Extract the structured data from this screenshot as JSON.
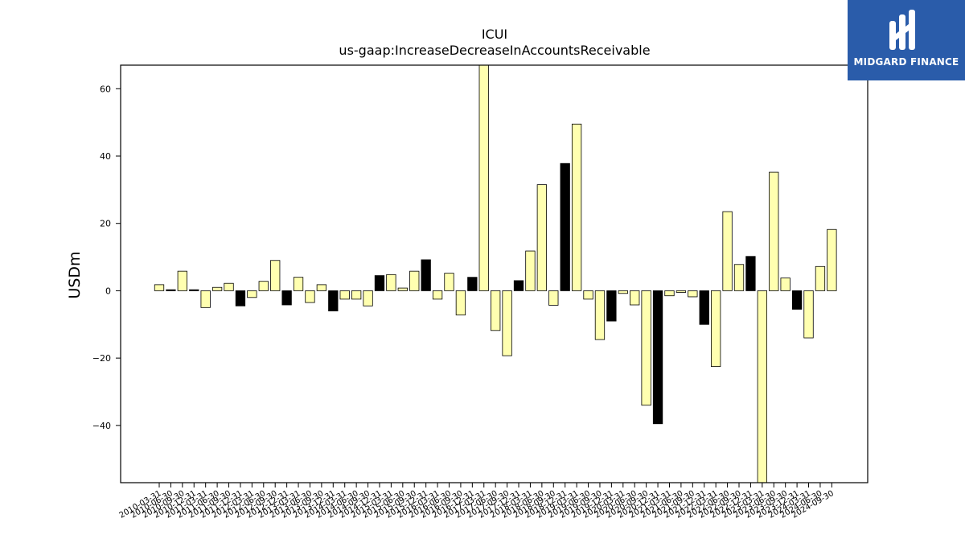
{
  "chart_data": {
    "type": "bar",
    "title": "ICUI",
    "subtitle": "us-gaap:IncreaseDecreaseInAccountsReceivable",
    "ylabel": "USDm",
    "xlabel": "",
    "ylim": [
      -57,
      67
    ],
    "yticks": [
      -40,
      -20,
      0,
      20,
      40,
      60
    ],
    "grid": false,
    "colors": {
      "annual": "#000000",
      "quarter": "#ffffb0",
      "edge": "#000000"
    },
    "categories": [
      "2010-03-31",
      "2010-06-30",
      "2010-09-30",
      "2010-12-31",
      "2011-03-31",
      "2011-06-30",
      "2011-09-30",
      "2011-12-31",
      "2012-03-31",
      "2012-06-30",
      "2012-09-30",
      "2012-12-31",
      "2013-03-31",
      "2013-06-30",
      "2013-09-30",
      "2013-12-31",
      "2014-03-31",
      "2014-06-30",
      "2014-09-30",
      "2014-12-31",
      "2015-03-31",
      "2015-06-30",
      "2015-09-30",
      "2015-12-31",
      "2016-03-31",
      "2016-06-30",
      "2016-09-30",
      "2016-12-31",
      "2017-03-31",
      "2017-06-30",
      "2017-09-30",
      "2017-12-31",
      "2018-03-31",
      "2018-06-30",
      "2018-09-30",
      "2018-12-31",
      "2019-03-31",
      "2019-06-30",
      "2019-09-30",
      "2019-12-31",
      "2020-03-31",
      "2020-06-30",
      "2020-09-30",
      "2020-12-31",
      "2021-03-31",
      "2021-06-30",
      "2021-09-30",
      "2021-12-31",
      "2022-03-31",
      "2022-06-30",
      "2022-09-30",
      "2022-12-31",
      "2023-03-31",
      "2023-06-30",
      "2023-09-30",
      "2023-12-31",
      "2024-03-31",
      "2024-06-30",
      "2024-09-30"
    ],
    "values": [
      1.8,
      0.3,
      5.8,
      0.3,
      -5.0,
      1.0,
      2.2,
      -4.5,
      -2.0,
      2.8,
      9.0,
      -4.2,
      4.0,
      -3.5,
      1.8,
      -6.0,
      -2.5,
      -2.5,
      -4.5,
      4.5,
      4.8,
      0.8,
      5.8,
      9.2,
      -2.5,
      5.2,
      -7.2,
      4.0,
      67.5,
      -11.8,
      -19.3,
      3.0,
      11.8,
      31.5,
      -4.3,
      37.8,
      49.5,
      -2.5,
      -14.5,
      -9.0,
      -0.8,
      -4.2,
      -34.0,
      -39.5,
      -1.5,
      -0.5,
      -1.8,
      -10.0,
      -22.5,
      23.5,
      7.8,
      10.2,
      -57.0,
      35.2,
      3.8,
      -5.5,
      -14.0,
      7.2,
      18.2
    ],
    "annual": [
      false,
      true,
      false,
      true,
      false,
      false,
      false,
      true,
      false,
      false,
      false,
      true,
      false,
      false,
      false,
      true,
      false,
      false,
      false,
      true,
      false,
      false,
      false,
      true,
      false,
      false,
      false,
      true,
      false,
      false,
      false,
      true,
      false,
      false,
      false,
      true,
      false,
      false,
      false,
      true,
      false,
      false,
      false,
      true,
      false,
      false,
      false,
      true,
      false,
      false,
      false,
      true,
      false,
      false,
      false,
      true,
      false,
      false,
      false
    ]
  },
  "logo": {
    "text": "MIDGARD FINANCE",
    "background": "#2a5caa",
    "foreground": "#ffffff"
  }
}
